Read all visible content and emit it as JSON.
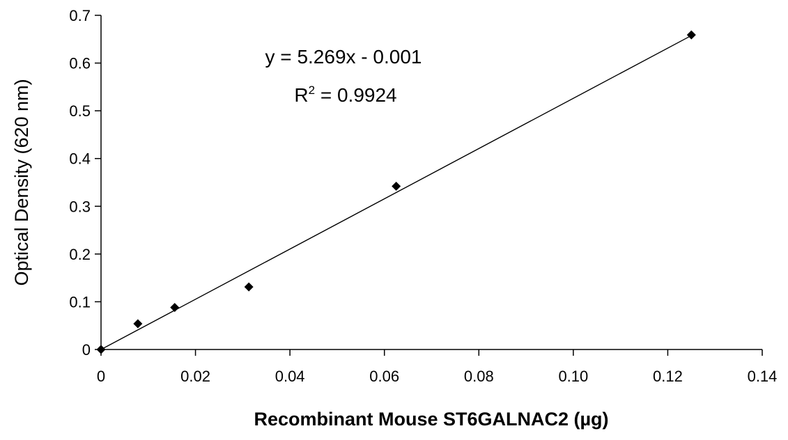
{
  "chart_data": {
    "type": "scatter",
    "title": "",
    "xlabel": "Recombinant Mouse ST6GALNAC2 (µg)",
    "ylabel": "Optical Density (620 nm)",
    "xlim": [
      0,
      0.14
    ],
    "ylim": [
      0,
      0.7
    ],
    "x_ticks": [
      "0",
      "0.02",
      "0.04",
      "0.06",
      "0.08",
      "0.10",
      "0.12",
      "0.14"
    ],
    "y_ticks": [
      "0",
      "0.1",
      "0.2",
      "0.3",
      "0.4",
      "0.5",
      "0.6",
      "0.7"
    ],
    "grid": false,
    "legend": "none",
    "series": [
      {
        "x": [
          0,
          0.0078,
          0.0156,
          0.0313,
          0.0625,
          0.125
        ],
        "y": [
          0.0,
          0.054,
          0.088,
          0.131,
          0.342,
          0.659
        ],
        "marker": "diamond",
        "color": "#000000"
      }
    ],
    "trendline": {
      "slope": 5.269,
      "intercept": -0.001,
      "x_range": [
        0,
        0.125
      ],
      "color": "#000000"
    },
    "annotations": {
      "equation": "y = 5.269x - 0.001",
      "r_squared_prefix": "R",
      "r_squared_sup": "2",
      "r_squared_rest": " = 0.9924"
    }
  }
}
